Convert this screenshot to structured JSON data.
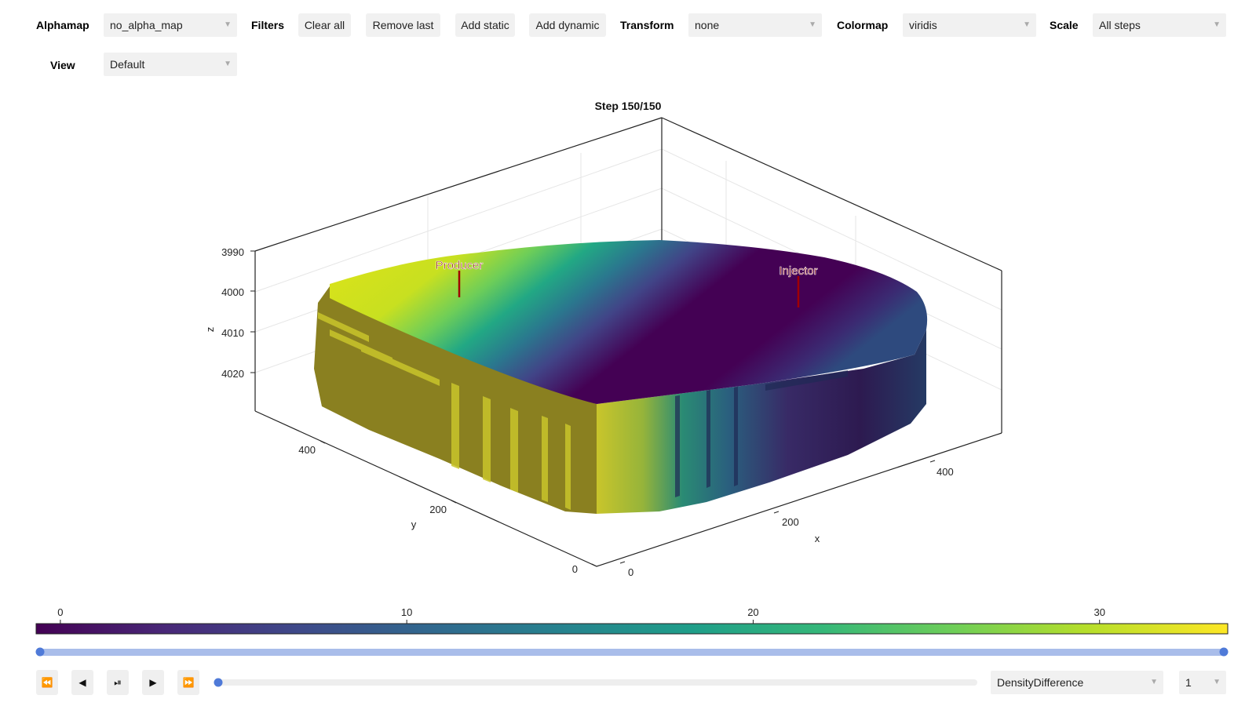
{
  "toolbar": {
    "alphamap_label": "Alphamap",
    "alphamap_value": "no_alpha_map",
    "filters_label": "Filters",
    "clear_all": "Clear all",
    "remove_last": "Remove last",
    "add_static": "Add static",
    "add_dynamic": "Add dynamic",
    "transform_label": "Transform",
    "transform_value": "none",
    "colormap_label": "Colormap",
    "colormap_value": "viridis",
    "scale_label": "Scale",
    "scale_value": "All steps",
    "view_label": "View",
    "view_value": "Default",
    "dropdown_arrow": "▼"
  },
  "plot": {
    "title": "Step 150/150",
    "z_axis": {
      "label": "z",
      "ticks": [
        "3990",
        "4000",
        "4010",
        "4020"
      ]
    },
    "y_axis": {
      "label": "y",
      "ticks": [
        "400",
        "200",
        "0"
      ]
    },
    "x_axis": {
      "label": "x",
      "ticks": [
        "400",
        "200",
        "0"
      ]
    },
    "wells": {
      "producer": "Producer",
      "injector": "Injector"
    },
    "well_color": "#a00000"
  },
  "colorbar": {
    "colormap": "viridis",
    "ticks": [
      "0",
      "10",
      "20",
      "30"
    ],
    "range": [
      -0.7,
      33.7
    ]
  },
  "range_slider": {
    "min": 1,
    "max": 150,
    "low": 1,
    "high": 150,
    "color": "#4f7ad8",
    "track_color": "#a9bdea"
  },
  "playback": {
    "rewind": "⏪",
    "step_back": "◀",
    "play_pause": "⏯",
    "play": "▶",
    "fast_forward": "⏩",
    "slider_value": 0
  },
  "variable_select": {
    "value": "DensityDifference"
  },
  "step_select": {
    "value": "1"
  }
}
